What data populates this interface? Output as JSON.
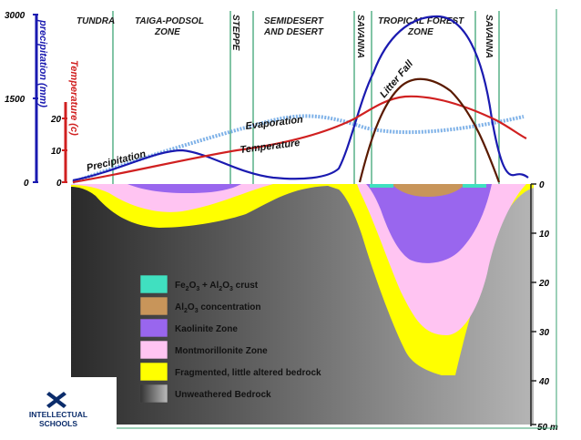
{
  "zones": [
    {
      "name": "TUNDRA",
      "lines": [
        "TUNDRA"
      ]
    },
    {
      "name": "TAIGA-PODSOL ZONE",
      "lines": [
        "TAIGA-PODSOL",
        "ZONE"
      ]
    },
    {
      "name": "STEPPE",
      "lines": [
        "STEPPE"
      ]
    },
    {
      "name": "SEMIDESERT AND DESERT",
      "lines": [
        "SEMIDESERT",
        "AND DESERT"
      ]
    },
    {
      "name": "SAVANNA",
      "lines": [
        "SAVANNA"
      ]
    },
    {
      "name": "TROPICAL FOREST ZONE",
      "lines": [
        "TROPICAL FOREST",
        "ZONE"
      ]
    },
    {
      "name": "SAVANNA",
      "lines": [
        "SAVANNA"
      ]
    }
  ],
  "axes": {
    "precipitation": {
      "title": "precipitation (mm)",
      "ticks": [
        "3000",
        "1500",
        "0"
      ],
      "color": "#1a1ab0"
    },
    "temperature": {
      "title": "Temperature (c)",
      "ticks": [
        "20",
        "10",
        "0"
      ],
      "color": "#d02020"
    },
    "depth": {
      "ticks": [
        "0",
        "10",
        "20",
        "30",
        "40",
        "50 m"
      ]
    }
  },
  "curve_labels": {
    "precipitation": "Precipitation",
    "evaporation": "Evaporation",
    "temperature": "Temperature",
    "litter_fall": "Litter Fall"
  },
  "legend": [
    {
      "key": "fe-al-crust",
      "color": "#40e0c0",
      "formula": [
        [
          "Fe",
          ""
        ],
        [
          "2",
          "sub"
        ],
        [
          "O",
          ""
        ],
        [
          "3",
          "sub"
        ],
        [
          " + Al",
          ""
        ],
        [
          "2",
          "sub"
        ],
        [
          "O",
          ""
        ],
        [
          "3",
          "sub"
        ],
        [
          "  crust",
          ""
        ]
      ]
    },
    {
      "key": "al-concentration",
      "color": "#c8955a",
      "formula": [
        [
          "Al",
          ""
        ],
        [
          "2",
          "sub"
        ],
        [
          "O",
          ""
        ],
        [
          "3",
          "sub"
        ],
        [
          "  concentration",
          ""
        ]
      ]
    },
    {
      "key": "kaolinite",
      "color": "#9966ee",
      "formula": [
        [
          "Kaolinite Zone",
          ""
        ]
      ]
    },
    {
      "key": "montmorillonite",
      "color": "#ffc4f2",
      "formula": [
        [
          "Montmorillonite Zone",
          ""
        ]
      ]
    },
    {
      "key": "fragmented",
      "color": "#ffff00",
      "formula": [
        [
          "Fragmented, little altered bedrock",
          ""
        ]
      ]
    },
    {
      "key": "unweathered",
      "color": "#777777",
      "formula": [
        [
          "Unweathered Bedrock",
          ""
        ]
      ]
    }
  ],
  "logo": {
    "line1": "INTELLECTUAL",
    "line2": "SCHOOLS",
    "color": "#0b2c6b"
  },
  "colors": {
    "precipitation": "#1a1ab0",
    "temperature": "#d02020",
    "evaporation": "#7fb2e8",
    "litter_fall": "#5a1a00",
    "zone_line": "#2e9e6a",
    "frame": "#3aa070"
  }
}
